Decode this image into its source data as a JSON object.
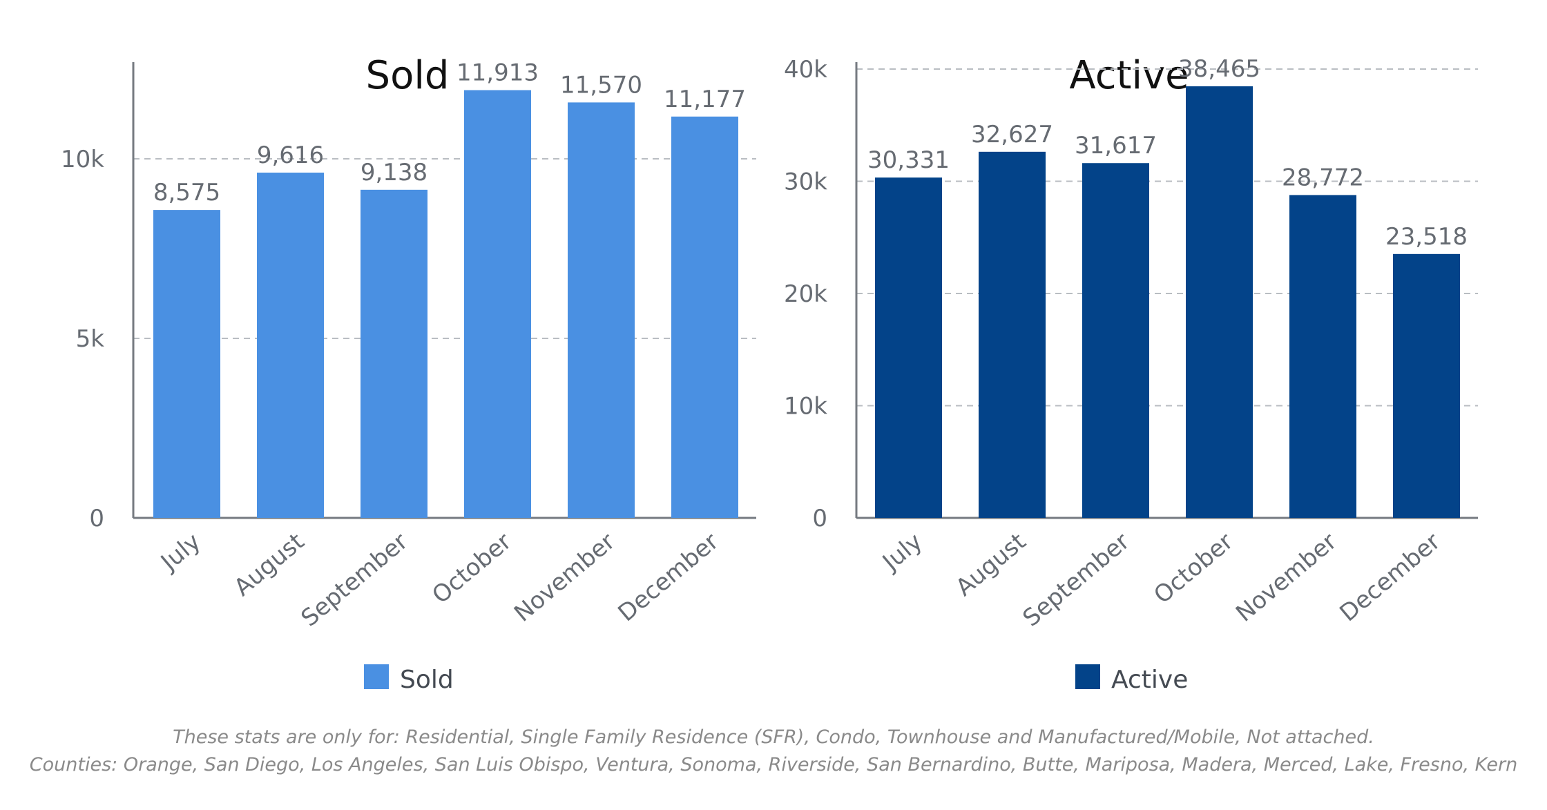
{
  "chart_data": [
    {
      "type": "bar",
      "title": "Sold",
      "categories": [
        "July",
        "August",
        "September",
        "October",
        "November",
        "December"
      ],
      "series": [
        {
          "name": "Sold",
          "values": [
            8575,
            9616,
            9138,
            11913,
            11570,
            11177
          ]
        }
      ],
      "data_labels": [
        "8,575",
        "9,616",
        "9,138",
        "11,913",
        "11,570",
        "11,177"
      ],
      "ylim": [
        0,
        12500
      ],
      "yticks": [
        0,
        5000,
        10000
      ],
      "ytick_labels": [
        "0",
        "5k",
        "10k"
      ],
      "xlabel": "",
      "ylabel": "",
      "grid": true,
      "legend": "bottom-center",
      "color": "#4a90e2"
    },
    {
      "type": "bar",
      "title": "Active",
      "categories": [
        "July",
        "August",
        "September",
        "October",
        "November",
        "December"
      ],
      "series": [
        {
          "name": "Active",
          "values": [
            30331,
            32627,
            31617,
            38465,
            28772,
            23518
          ]
        }
      ],
      "data_labels": [
        "30,331",
        "32,627",
        "31,617",
        "38,465",
        "28,772",
        "23,518"
      ],
      "ylim": [
        0,
        40000
      ],
      "yticks": [
        0,
        10000,
        20000,
        30000,
        40000
      ],
      "ytick_labels": [
        "0",
        "10k",
        "20k",
        "30k",
        "40k"
      ],
      "xlabel": "",
      "ylabel": "",
      "grid": true,
      "legend": "bottom-center",
      "color": "#034389"
    }
  ],
  "footnote": {
    "line1": "These stats are only for: Residential, Single Family Residence (SFR), Condo, Townhouse and Manufactured/Mobile, Not attached.",
    "line2": "Counties: Orange, San Diego, Los Angeles, San Luis Obispo, Ventura, Sonoma, Riverside, San Bernardino, Butte, Mariposa, Madera, Merced, Lake, Fresno, Kern"
  },
  "colors": {
    "axis": "#757a80",
    "grid": "#b9bdc2",
    "text": "#666b72",
    "title": "#111111"
  }
}
